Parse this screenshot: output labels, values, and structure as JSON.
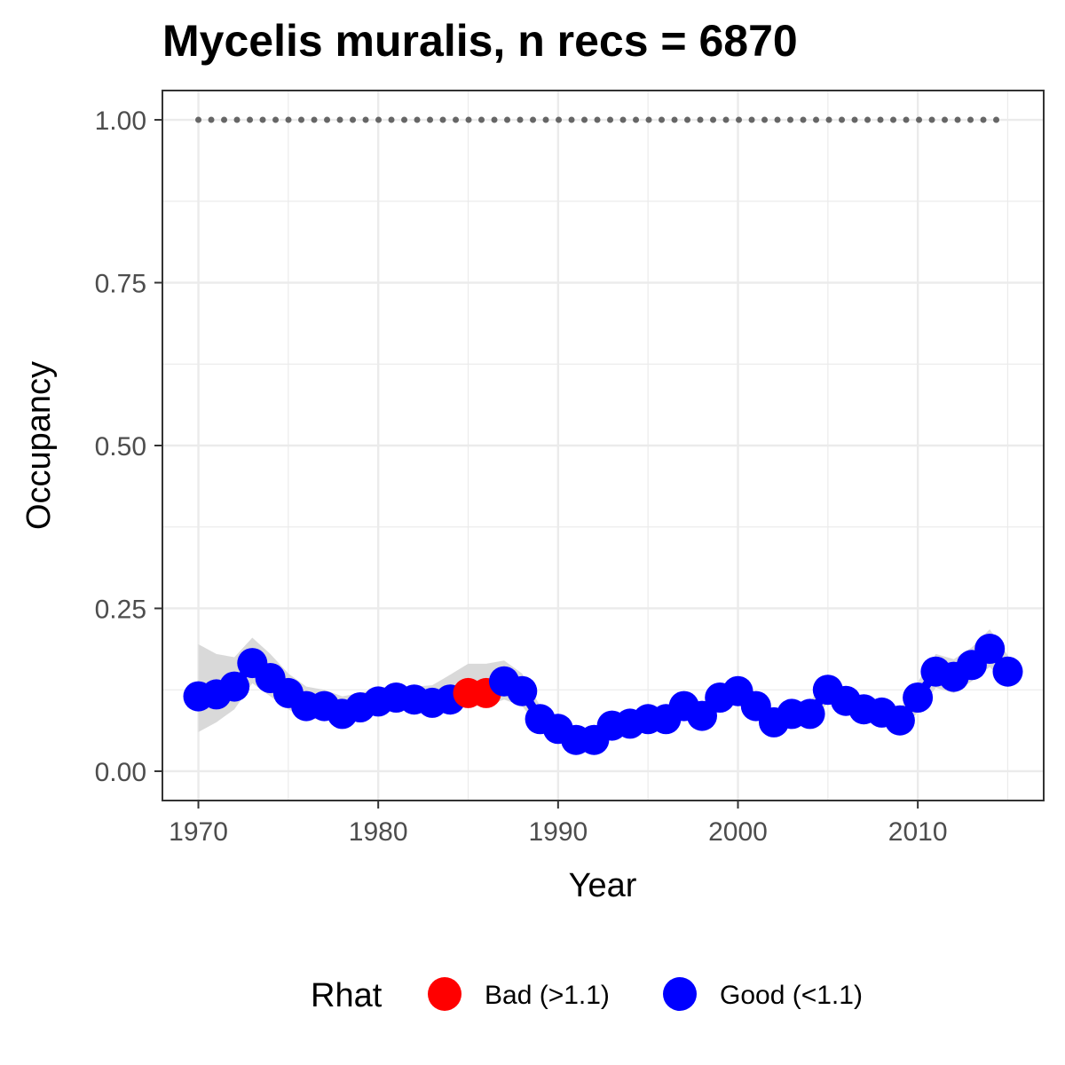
{
  "chart_data": {
    "type": "line",
    "title": "Mycelis muralis, n recs = 6870",
    "xlabel": "Year",
    "ylabel": "Occupancy",
    "xlim": [
      1968,
      2017
    ],
    "ylim": [
      -0.045,
      1.045
    ],
    "x_ticks": [
      1970,
      1980,
      1990,
      2000,
      2010
    ],
    "x_tick_labels": [
      "1970",
      "1980",
      "1990",
      "2000",
      "2010"
    ],
    "y_ticks": [
      0.0,
      0.25,
      0.5,
      0.75,
      1.0
    ],
    "y_tick_labels": [
      "0.00",
      "0.25",
      "0.50",
      "0.75",
      "1.00"
    ],
    "grid": true,
    "legend": {
      "title": "Rhat",
      "position": "bottom",
      "entries": [
        {
          "label": "Bad (>1.1)",
          "color": "#ff0000",
          "key": "bad"
        },
        {
          "label": "Good (<1.1)",
          "color": "#0000ff",
          "key": "good"
        }
      ]
    },
    "colors": {
      "good": "#0000ff",
      "bad": "#ff0000",
      "ribbon": "#d9d9d9",
      "reference": "#666666"
    },
    "reference_series": {
      "style": "dotted",
      "x": [
        1970,
        2015
      ],
      "y": [
        1.0,
        1.0
      ]
    },
    "series": [
      {
        "years": [
          1970,
          1971,
          1972,
          1973,
          1974,
          1975,
          1976,
          1977,
          1978,
          1979,
          1980,
          1981,
          1982,
          1983,
          1984,
          1985,
          1986,
          1987,
          1988,
          1989,
          1990,
          1991,
          1992,
          1993,
          1994,
          1995,
          1996,
          1997,
          1998,
          1999,
          2000,
          2001,
          2002,
          2003,
          2004,
          2005,
          2006,
          2007,
          2008,
          2009,
          2010,
          2011,
          2012,
          2013,
          2014,
          2015
        ],
        "occupancy": [
          0.115,
          0.118,
          0.13,
          0.166,
          0.143,
          0.12,
          0.1,
          0.1,
          0.088,
          0.098,
          0.107,
          0.113,
          0.11,
          0.105,
          0.11,
          0.12,
          0.12,
          0.138,
          0.123,
          0.08,
          0.065,
          0.048,
          0.048,
          0.07,
          0.073,
          0.08,
          0.08,
          0.1,
          0.085,
          0.113,
          0.123,
          0.1,
          0.075,
          0.088,
          0.088,
          0.125,
          0.108,
          0.095,
          0.09,
          0.078,
          0.113,
          0.153,
          0.145,
          0.163,
          0.188,
          0.153
        ],
        "lower": [
          0.06,
          0.075,
          0.095,
          0.135,
          0.115,
          0.095,
          0.08,
          0.08,
          0.075,
          0.082,
          0.09,
          0.095,
          0.095,
          0.093,
          0.096,
          0.1,
          0.1,
          0.11,
          0.1,
          0.065,
          0.05,
          0.036,
          0.036,
          0.055,
          0.058,
          0.065,
          0.065,
          0.082,
          0.07,
          0.095,
          0.103,
          0.082,
          0.06,
          0.072,
          0.072,
          0.105,
          0.09,
          0.078,
          0.073,
          0.062,
          0.09,
          0.128,
          0.12,
          0.138,
          0.16,
          0.13
        ],
        "upper": [
          0.195,
          0.18,
          0.175,
          0.205,
          0.18,
          0.15,
          0.13,
          0.125,
          0.115,
          0.12,
          0.128,
          0.132,
          0.13,
          0.132,
          0.148,
          0.165,
          0.165,
          0.17,
          0.15,
          0.1,
          0.082,
          0.062,
          0.062,
          0.086,
          0.09,
          0.096,
          0.097,
          0.12,
          0.102,
          0.132,
          0.145,
          0.12,
          0.092,
          0.105,
          0.106,
          0.147,
          0.128,
          0.114,
          0.108,
          0.095,
          0.137,
          0.18,
          0.172,
          0.19,
          0.218,
          0.178
        ],
        "rhat": [
          "good",
          "good",
          "good",
          "good",
          "good",
          "good",
          "good",
          "good",
          "good",
          "good",
          "good",
          "good",
          "good",
          "good",
          "good",
          "bad",
          "bad",
          "good",
          "good",
          "good",
          "good",
          "good",
          "good",
          "good",
          "good",
          "good",
          "good",
          "good",
          "good",
          "good",
          "good",
          "good",
          "good",
          "good",
          "good",
          "good",
          "good",
          "good",
          "good",
          "good",
          "good",
          "good",
          "good",
          "good",
          "good",
          "good"
        ]
      }
    ]
  }
}
